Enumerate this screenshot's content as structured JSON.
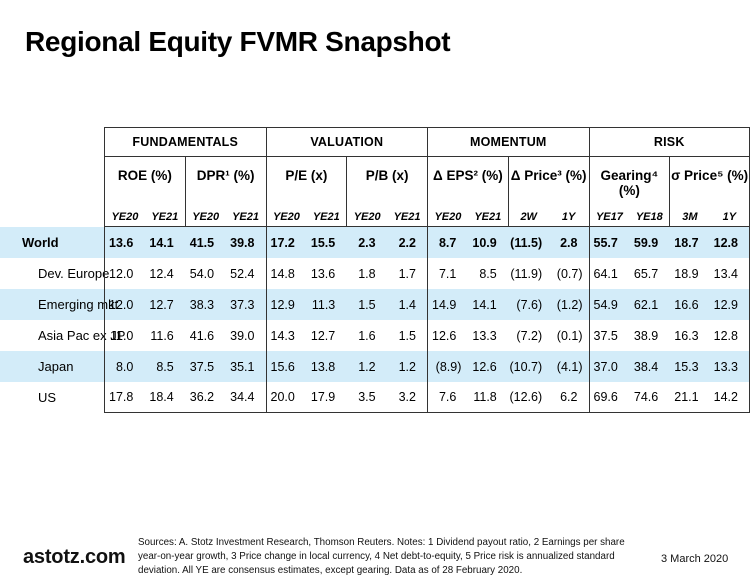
{
  "title": "Regional Equity FVMR Snapshot",
  "colors": {
    "row_highlight": "#d3ecf9",
    "table_border": "#333333"
  },
  "table": {
    "groups": [
      {
        "label": "FUNDAMENTALS",
        "metrics": [
          {
            "name": "ROE (%)",
            "periods": [
              "YE20",
              "YE21"
            ]
          },
          {
            "name": "DPR¹ (%)",
            "periods": [
              "YE20",
              "YE21"
            ]
          }
        ]
      },
      {
        "label": "VALUATION",
        "metrics": [
          {
            "name": "P/E (x)",
            "periods": [
              "YE20",
              "YE21"
            ]
          },
          {
            "name": "P/B (x)",
            "periods": [
              "YE20",
              "YE21"
            ]
          }
        ]
      },
      {
        "label": "MOMENTUM",
        "metrics": [
          {
            "name": "Δ EPS² (%)",
            "periods": [
              "YE20",
              "YE21"
            ]
          },
          {
            "name": "Δ Price³ (%)",
            "periods": [
              "2W",
              "1Y"
            ]
          }
        ]
      },
      {
        "label": "RISK",
        "metrics": [
          {
            "name": "Gearing⁴ (%)",
            "periods": [
              "YE17",
              "YE18"
            ]
          },
          {
            "name": "σ Price⁵ (%)",
            "periods": [
              "3M",
              "1Y"
            ]
          }
        ]
      }
    ],
    "rows": [
      {
        "label": "World",
        "bold": true,
        "values": [
          "13.6",
          "14.1",
          "41.5",
          "39.8",
          "17.2",
          "15.5",
          "2.3",
          "2.2",
          "8.7",
          "10.9",
          "(11.5)",
          "2.8",
          "55.7",
          "59.9",
          "18.7",
          "12.8"
        ]
      },
      {
        "label": "Dev. Europe",
        "bold": false,
        "values": [
          "12.0",
          "12.4",
          "54.0",
          "52.4",
          "14.8",
          "13.6",
          "1.8",
          "1.7",
          "7.1",
          "8.5",
          "(11.9)",
          "(0.7)",
          "64.1",
          "65.7",
          "18.9",
          "13.4"
        ]
      },
      {
        "label": "Emerging mkt",
        "bold": false,
        "values": [
          "12.0",
          "12.7",
          "38.3",
          "37.3",
          "12.9",
          "11.3",
          "1.5",
          "1.4",
          "14.9",
          "14.1",
          "(7.6)",
          "(1.2)",
          "54.9",
          "62.1",
          "16.6",
          "12.9"
        ]
      },
      {
        "label": "Asia Pac ex JP",
        "bold": false,
        "values": [
          "11.0",
          "11.6",
          "41.6",
          "39.0",
          "14.3",
          "12.7",
          "1.6",
          "1.5",
          "12.6",
          "13.3",
          "(7.2)",
          "(0.1)",
          "37.5",
          "38.9",
          "16.3",
          "12.8"
        ]
      },
      {
        "label": "Japan",
        "bold": false,
        "values": [
          "8.0",
          "8.5",
          "37.5",
          "35.1",
          "15.6",
          "13.8",
          "1.2",
          "1.2",
          "(8.9)",
          "12.6",
          "(10.7)",
          "(4.1)",
          "37.0",
          "38.4",
          "15.3",
          "13.3"
        ]
      },
      {
        "label": "US",
        "bold": false,
        "values": [
          "17.8",
          "18.4",
          "36.2",
          "34.4",
          "20.0",
          "17.9",
          "3.5",
          "3.2",
          "7.6",
          "11.8",
          "(12.6)",
          "6.2",
          "69.6",
          "74.6",
          "21.1",
          "14.2"
        ]
      }
    ]
  },
  "footer": {
    "brand": "astotz.com",
    "sources_note": "Sources: A. Stotz Investment Research, Thomson Reuters. Notes: 1 Dividend payout ratio, 2 Earnings per share year-on-year growth, 3 Price change in local currency, 4 Net debt-to-equity, 5 Price risk is annualized standard deviation. All YE are consensus estimates, except gearing. Data as of 28 February 2020.",
    "date": "3 March 2020"
  }
}
